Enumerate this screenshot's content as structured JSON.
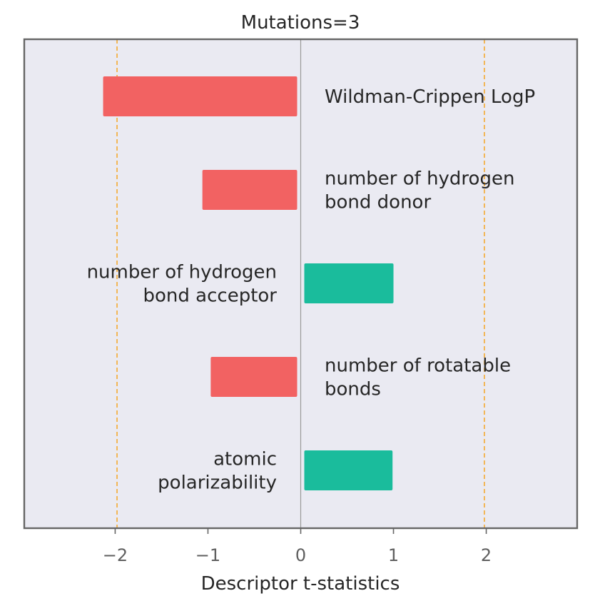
{
  "chart_data": {
    "type": "bar",
    "orientation": "horizontal",
    "title": "Mutations=3",
    "xlabel": "Descriptor t-statistics",
    "ylabel": "",
    "xlim": [
      -2.98,
      2.98
    ],
    "xticks": [
      -2,
      -1,
      0,
      1,
      2
    ],
    "xtick_labels": [
      "−2",
      "−1",
      "0",
      "1",
      "2"
    ],
    "reference_lines": [
      -1.98,
      1.98
    ],
    "reference_line_color": "#f5a623",
    "grid": false,
    "categories": [
      [
        "Wildman-Crippen LogP"
      ],
      [
        "number of hydrogen",
        "bond donor"
      ],
      [
        "number of hydrogen",
        "bond acceptor"
      ],
      [
        "number of rotatable",
        "bonds"
      ],
      [
        "atomic",
        "polarizability"
      ]
    ],
    "values": [
      -2.13,
      -1.06,
      1.0,
      -0.97,
      0.99
    ],
    "colors": {
      "negative": "#f26262",
      "positive": "#1abc9c",
      "background": "#eaeaf2",
      "frame": "#666666"
    }
  }
}
